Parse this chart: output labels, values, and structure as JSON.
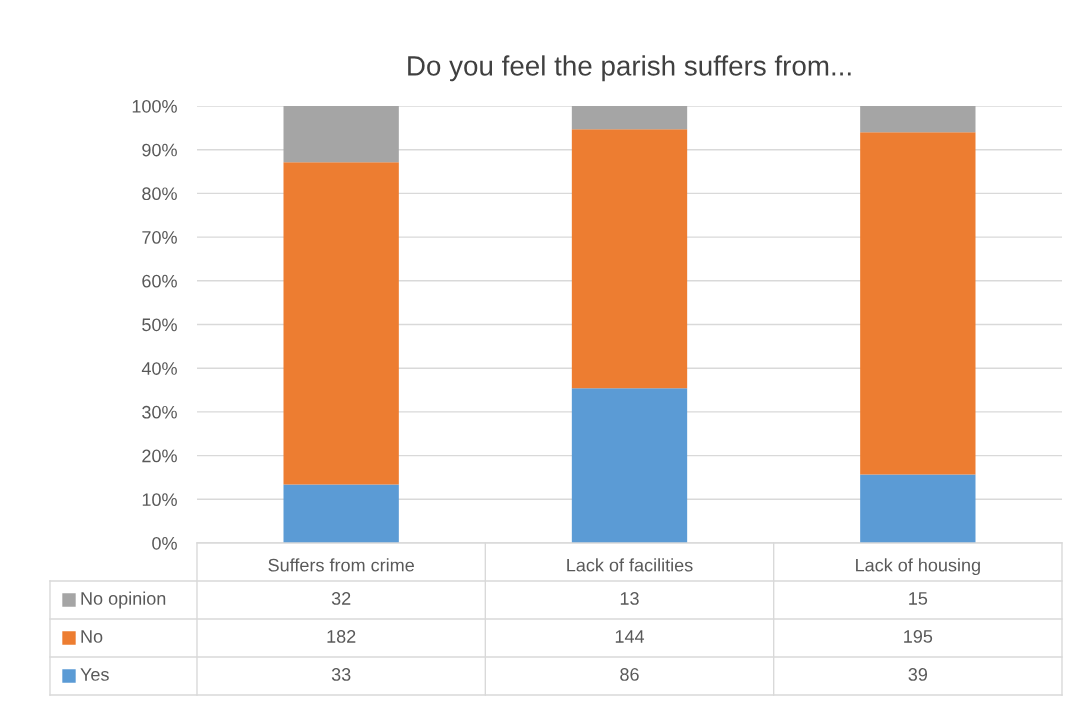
{
  "chart_data": {
    "type": "bar",
    "stacked": true,
    "title": "Do you feel the parish suffers from...",
    "categories": [
      "Suffers from crime",
      "Lack of facilities",
      "Lack of housing"
    ],
    "series": [
      {
        "name": "Yes",
        "color": "#5b9bd5",
        "values": [
          13.4,
          35.4,
          15.7
        ]
      },
      {
        "name": "No",
        "color": "#ed7d31",
        "values": [
          73.7,
          59.3,
          78.3
        ]
      },
      {
        "name": "No opinion",
        "color": "#a5a5a5",
        "values": [
          13.0,
          5.3,
          6.0
        ]
      }
    ],
    "annotations": [
      "32",
      "13",
      "15",
      "182",
      "144",
      "195",
      "33",
      "86",
      "39"
    ],
    "ylim": [
      0,
      100
    ],
    "yticks": [
      {
        "value": 0,
        "label": "0%"
      },
      {
        "value": 10,
        "label": "10%"
      },
      {
        "value": 20,
        "label": "20%"
      },
      {
        "value": 30,
        "label": "30%"
      },
      {
        "value": 40,
        "label": "40%"
      },
      {
        "value": 50,
        "label": "50%"
      },
      {
        "value": 60,
        "label": "60%"
      },
      {
        "value": 70,
        "label": "70%"
      },
      {
        "value": 80,
        "label": "80%"
      },
      {
        "value": 90,
        "label": "90%"
      },
      {
        "value": 100,
        "label": "100%"
      }
    ],
    "grid": "y",
    "legend": "bottom"
  }
}
